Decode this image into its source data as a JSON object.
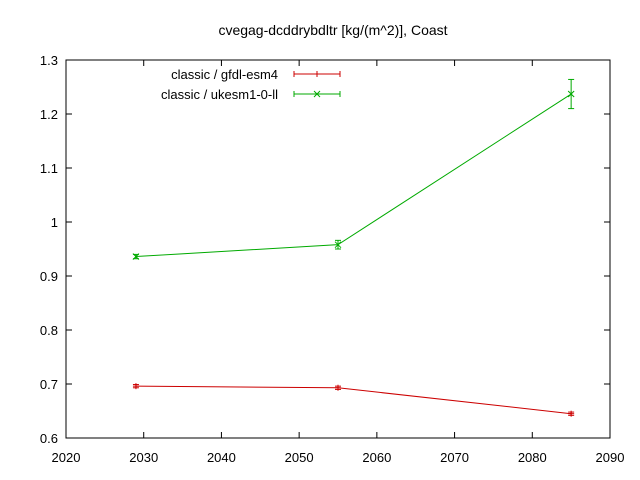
{
  "chart_data": {
    "type": "line",
    "title": "cvegag-dcddrybdltr [kg/(m^2)], Coast",
    "xlabel": "",
    "ylabel": "",
    "xlim": [
      2020,
      2090
    ],
    "ylim": [
      0.6,
      1.3
    ],
    "xticks": [
      2020,
      2030,
      2040,
      2050,
      2060,
      2070,
      2080,
      2090
    ],
    "yticks": [
      0.6,
      0.7,
      0.8,
      0.9,
      1,
      1.1,
      1.2,
      1.3
    ],
    "grid": false,
    "legend_position": "top-left",
    "series": [
      {
        "name": "classic / gfdl-esm4",
        "color": "#cc0000",
        "marker": "plus",
        "x": [
          2029,
          2055,
          2085
        ],
        "y": [
          0.696,
          0.693,
          0.645
        ],
        "err": [
          0.003,
          0.003,
          0.003
        ]
      },
      {
        "name": "classic / ukesm1-0-ll",
        "color": "#00aa00",
        "marker": "cross",
        "x": [
          2029,
          2055,
          2085
        ],
        "y": [
          0.936,
          0.958,
          1.237
        ],
        "err": [
          0.004,
          0.008,
          0.027
        ]
      }
    ]
  }
}
